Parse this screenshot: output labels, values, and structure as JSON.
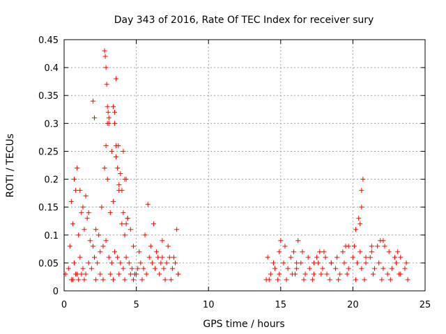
{
  "chart_data": {
    "type": "scatter",
    "title": "Day 343 of 2016, Rate Of TEC Index for receiver sury",
    "xlabel": "GPS time / hours",
    "ylabel": "ROTI / TECUs",
    "xlim": [
      0,
      25
    ],
    "ylim": [
      0,
      0.45
    ],
    "xticks": [
      0,
      5,
      10,
      15,
      20,
      25
    ],
    "xtick_labels": [
      "0",
      "5",
      "10",
      "15",
      "20",
      "25"
    ],
    "yticks": [
      0,
      0.05,
      0.1,
      0.15,
      0.2,
      0.25,
      0.3,
      0.35,
      0.4,
      0.45
    ],
    "ytick_labels": [
      "0",
      "0.05",
      "0.1",
      "0.15",
      "0.2",
      "0.25",
      "0.3",
      "0.35",
      "0.4",
      "0.45"
    ],
    "grid": true,
    "marker": "+",
    "marker_color": "#ff0000",
    "series": [
      {
        "x": [
          0.1,
          0.3,
          0.5,
          0.7,
          0.9,
          1.1,
          1.3,
          1.5,
          1.7,
          1.9,
          2.1,
          2.3,
          2.5,
          2.7,
          2.9,
          3.1,
          3.3,
          3.5,
          3.7,
          3.9,
          4.1,
          4.3,
          4.5,
          4.7,
          4.9,
          5.1,
          5.3,
          5.5,
          5.7,
          5.9,
          6.1,
          6.3,
          6.5,
          6.7,
          6.9,
          7.1,
          7.3,
          7.5,
          7.7,
          7.9,
          0.4,
          0.6,
          0.8,
          1.0,
          1.2,
          1.4,
          1.6,
          1.8,
          2.0,
          2.2,
          2.4,
          2.6,
          2.8,
          3.0,
          3.2,
          3.4,
          3.6,
          3.8,
          4.0,
          4.2,
          4.4,
          4.6,
          4.8,
          5.2,
          5.6,
          6.0,
          6.4,
          6.8,
          7.2,
          7.6,
          0.5,
          0.7,
          0.9,
          1.1,
          1.3,
          1.5,
          1.7,
          2.9,
          3.0,
          3.1,
          3.5,
          3.6,
          3.7,
          3.8,
          3.9,
          4.0,
          4.1,
          4.2,
          4.3,
          4.4,
          2.0,
          2.1,
          2.8,
          2.85,
          2.9,
          2.95,
          3.0,
          3.05,
          3.1,
          3.3,
          3.4,
          3.5,
          3.6,
          3.75,
          4.1,
          4.3,
          5.8,
          6.2,
          6.8,
          7.8,
          0.6,
          0.8,
          1.0,
          1.2,
          1.4,
          2.2,
          2.5,
          2.7,
          3.2,
          3.4,
          3.8,
          4.2,
          4.6,
          4.8,
          5.0,
          5.4,
          6.6,
          7.0,
          7.4,
          7.9,
          14.0,
          14.3,
          14.6,
          14.9,
          15.2,
          15.5,
          15.8,
          16.1,
          16.4,
          16.7,
          17.0,
          17.3,
          17.6,
          17.9,
          18.2,
          18.5,
          18.8,
          19.1,
          19.4,
          19.7,
          20.0,
          20.3,
          20.6,
          20.9,
          21.2,
          21.5,
          21.8,
          22.1,
          22.4,
          22.7,
          23.0,
          23.3,
          23.6,
          14.1,
          14.5,
          14.9,
          15.3,
          15.7,
          16.1,
          16.5,
          16.9,
          17.3,
          17.7,
          18.1,
          18.5,
          18.9,
          19.3,
          19.7,
          20.1,
          20.5,
          20.9,
          21.3,
          21.7,
          22.1,
          22.5,
          22.9,
          23.3,
          23.7,
          15.0,
          15.9,
          16.2,
          17.5,
          18.0,
          19.5,
          20.2,
          20.4,
          20.5,
          20.6,
          20.6,
          20.7,
          21.3,
          21.9,
          22.2,
          23.1,
          14.2,
          14.8,
          15.4,
          16.0,
          16.6,
          17.2,
          17.8,
          18.4,
          19.0,
          19.6,
          20.2,
          20.8,
          21.4,
          22.0,
          22.6,
          23.2,
          23.8
        ],
        "y": [
          0.03,
          0.04,
          0.02,
          0.05,
          0.03,
          0.06,
          0.04,
          0.03,
          0.05,
          0.04,
          0.06,
          0.05,
          0.07,
          0.08,
          0.09,
          0.06,
          0.05,
          0.07,
          0.06,
          0.05,
          0.04,
          0.06,
          0.05,
          0.04,
          0.03,
          0.04,
          0.05,
          0.04,
          0.03,
          0.06,
          0.05,
          0.04,
          0.06,
          0.05,
          0.04,
          0.05,
          0.06,
          0.04,
          0.05,
          0.03,
          0.08,
          0.12,
          0.18,
          0.1,
          0.14,
          0.11,
          0.13,
          0.09,
          0.08,
          0.11,
          0.1,
          0.15,
          0.22,
          0.2,
          0.14,
          0.16,
          0.24,
          0.18,
          0.12,
          0.1,
          0.13,
          0.11,
          0.08,
          0.07,
          0.1,
          0.08,
          0.07,
          0.06,
          0.08,
          0.06,
          0.16,
          0.2,
          0.22,
          0.18,
          0.15,
          0.17,
          0.14,
          0.26,
          0.3,
          0.31,
          0.32,
          0.26,
          0.22,
          0.19,
          0.21,
          0.18,
          0.14,
          0.2,
          0.12,
          0.13,
          0.34,
          0.31,
          0.43,
          0.42,
          0.4,
          0.37,
          0.33,
          0.32,
          0.3,
          0.25,
          0.33,
          0.3,
          0.38,
          0.26,
          0.25,
          0.2,
          0.155,
          0.12,
          0.09,
          0.11,
          0.02,
          0.03,
          0.02,
          0.03,
          0.02,
          0.02,
          0.03,
          0.02,
          0.03,
          0.02,
          0.03,
          0.02,
          0.03,
          0.02,
          0.03,
          0.02,
          0.03,
          0.02,
          0.02,
          0.03,
          0.02,
          0.03,
          0.04,
          0.03,
          0.05,
          0.04,
          0.03,
          0.04,
          0.05,
          0.03,
          0.04,
          0.03,
          0.05,
          0.04,
          0.03,
          0.05,
          0.04,
          0.03,
          0.05,
          0.04,
          0.06,
          0.05,
          0.04,
          0.05,
          0.06,
          0.04,
          0.05,
          0.04,
          0.03,
          0.04,
          0.05,
          0.03,
          0.04,
          0.06,
          0.05,
          0.07,
          0.08,
          0.06,
          0.05,
          0.07,
          0.06,
          0.05,
          0.07,
          0.06,
          0.05,
          0.06,
          0.07,
          0.08,
          0.08,
          0.07,
          0.06,
          0.07,
          0.08,
          0.09,
          0.07,
          0.06,
          0.06,
          0.05,
          0.09,
          0.07,
          0.09,
          0.06,
          0.07,
          0.08,
          0.11,
          0.13,
          0.12,
          0.15,
          0.18,
          0.2,
          0.08,
          0.09,
          0.08,
          0.07,
          0.02,
          0.02,
          0.02,
          0.03,
          0.02,
          0.02,
          0.03,
          0.02,
          0.02,
          0.03,
          0.02,
          0.02,
          0.03,
          0.02,
          0.02,
          0.03,
          0.02
        ]
      }
    ]
  }
}
